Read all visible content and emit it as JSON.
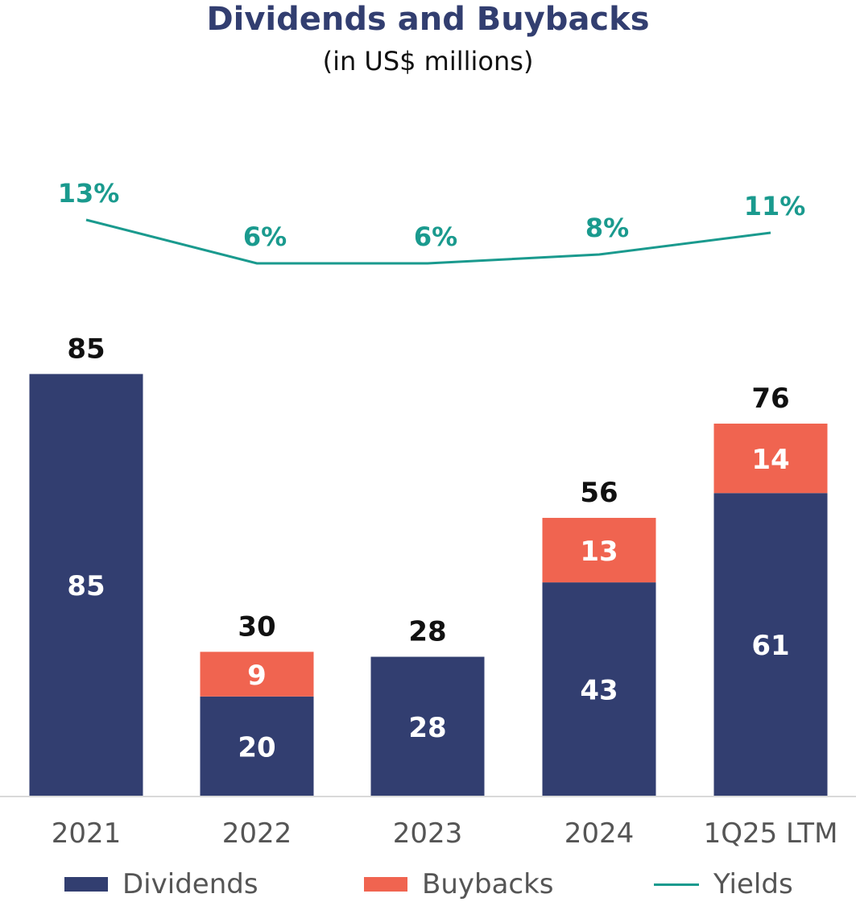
{
  "chart_data": {
    "type": "bar",
    "stacked": true,
    "title": "Dividends and Buybacks",
    "subtitle": "(in US$ millions)",
    "categories": [
      "2021",
      "2022",
      "2023",
      "2024",
      "1Q25 LTM"
    ],
    "series": [
      {
        "name": "Dividends",
        "values": [
          85,
          20,
          28,
          43,
          61
        ],
        "color": "#323e70"
      },
      {
        "name": "Buybacks",
        "values": [
          0,
          9,
          0,
          13,
          14
        ],
        "color": "#f06450"
      }
    ],
    "totals": [
      85,
      30,
      28,
      56,
      76
    ],
    "line_series": {
      "name": "Yields",
      "labels": [
        "13%",
        "6%",
        "6%",
        "8%",
        "11%"
      ],
      "values": [
        13,
        6,
        6,
        8,
        11
      ],
      "color": "#1a9a8e"
    },
    "ylim": [
      0,
      90
    ],
    "grid": false,
    "legend_position": "bottom"
  }
}
